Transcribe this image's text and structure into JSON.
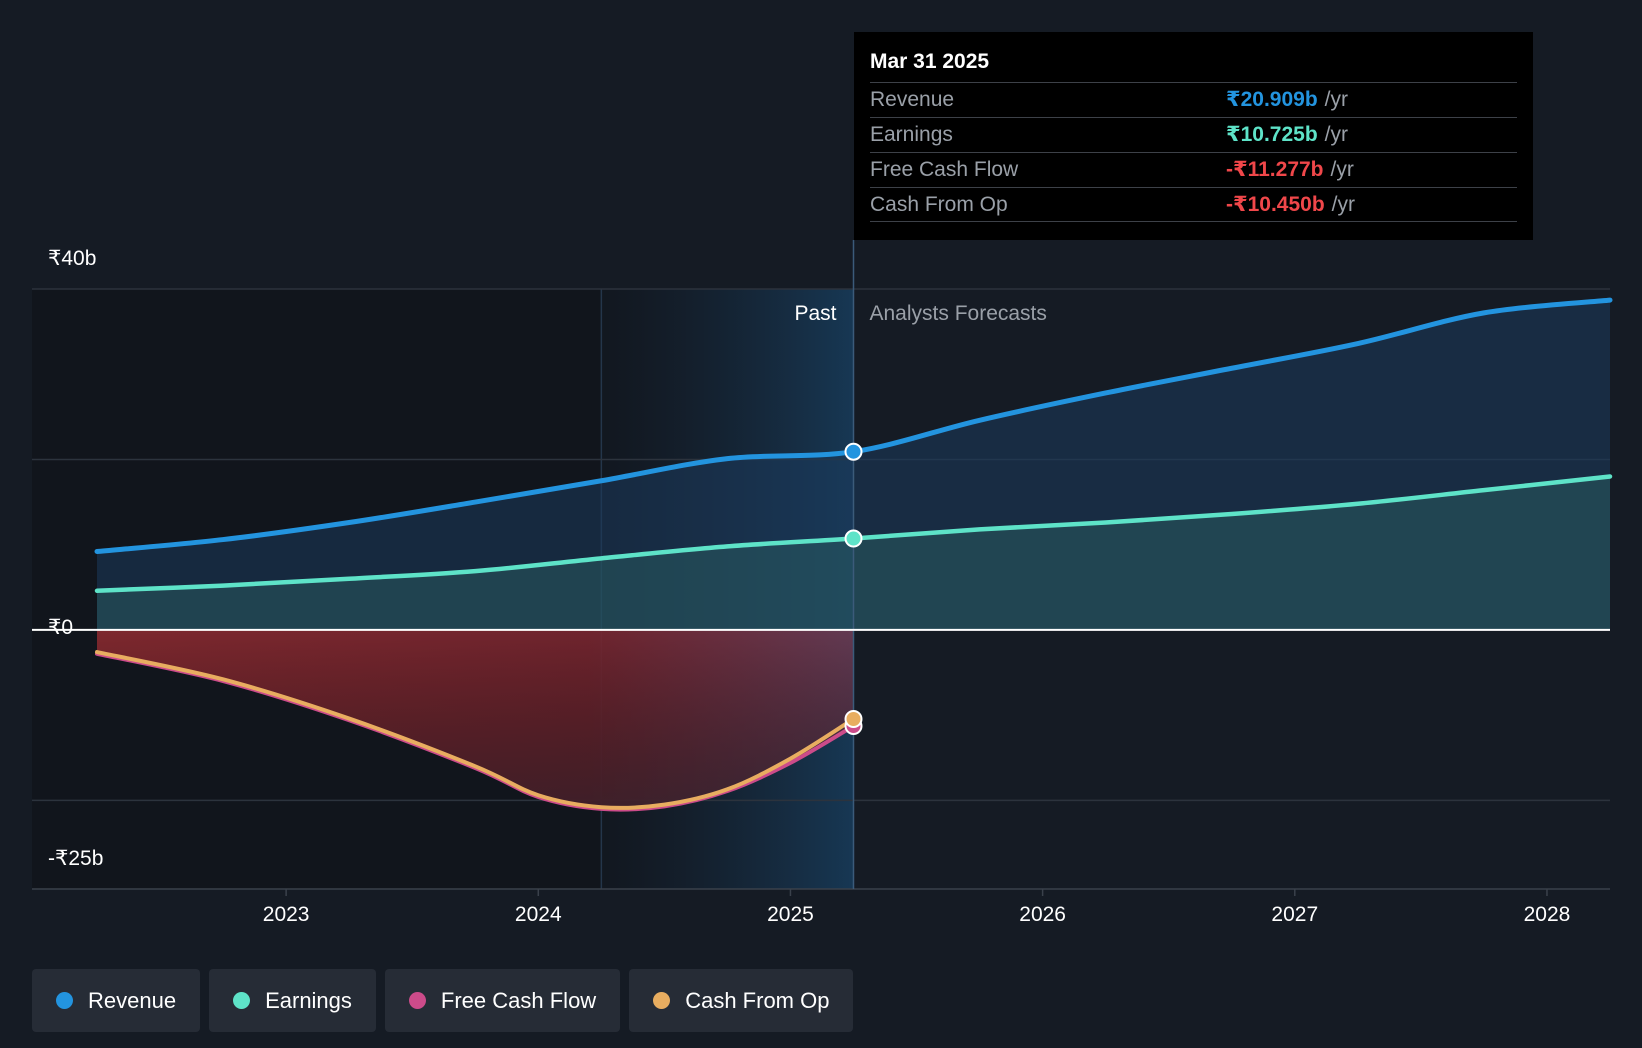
{
  "chart_data": {
    "type": "area",
    "x_unit": "year",
    "y_unit": "₹b",
    "ylim": [
      -25,
      40
    ],
    "xlim": [
      2022.25,
      2028.25
    ],
    "y_ticks": [
      {
        "value": 40,
        "label": "₹40b"
      },
      {
        "value": 0,
        "label": "₹0"
      },
      {
        "value": -25,
        "label": "-₹25b"
      }
    ],
    "x_ticks": [
      {
        "value": 2023,
        "label": "2023"
      },
      {
        "value": 2024,
        "label": "2024"
      },
      {
        "value": 2025,
        "label": "2025"
      },
      {
        "value": 2026,
        "label": "2026"
      },
      {
        "value": 2027,
        "label": "2027"
      },
      {
        "value": 2028,
        "label": "2028"
      }
    ],
    "past_label": "Past",
    "forecast_label": "Analysts Forecasts",
    "divider_x": 2025.25,
    "highlight_start_x": 2024.25,
    "series": [
      {
        "name": "Revenue",
        "color": "#2394df",
        "points": [
          [
            2022.25,
            9.2
          ],
          [
            2022.75,
            10.6
          ],
          [
            2023.25,
            12.6
          ],
          [
            2023.75,
            15.0
          ],
          [
            2024.25,
            17.5
          ],
          [
            2024.75,
            20.1
          ],
          [
            2025.25,
            20.909
          ],
          [
            2025.75,
            24.6
          ],
          [
            2026.25,
            27.8
          ],
          [
            2026.75,
            30.7
          ],
          [
            2027.25,
            33.6
          ],
          [
            2027.75,
            37.2
          ],
          [
            2028.25,
            38.7
          ]
        ]
      },
      {
        "name": "Earnings",
        "color": "#5ee3c8",
        "points": [
          [
            2022.25,
            4.6
          ],
          [
            2022.75,
            5.2
          ],
          [
            2023.25,
            6.0
          ],
          [
            2023.75,
            6.9
          ],
          [
            2024.25,
            8.4
          ],
          [
            2024.75,
            9.8
          ],
          [
            2025.25,
            10.725
          ],
          [
            2025.75,
            11.8
          ],
          [
            2026.25,
            12.6
          ],
          [
            2026.75,
            13.6
          ],
          [
            2027.25,
            14.8
          ],
          [
            2027.75,
            16.4
          ],
          [
            2028.25,
            18.0
          ]
        ]
      },
      {
        "name": "Free Cash Flow",
        "color": "#cc4b8a",
        "points": [
          [
            2022.25,
            -2.8
          ],
          [
            2022.75,
            -6.0
          ],
          [
            2023.25,
            -10.6
          ],
          [
            2023.75,
            -16.2
          ],
          [
            2024.0,
            -19.6
          ],
          [
            2024.25,
            -21.0
          ],
          [
            2024.5,
            -20.7
          ],
          [
            2024.75,
            -18.9
          ],
          [
            2025.0,
            -15.6
          ],
          [
            2025.25,
            -11.277
          ]
        ]
      },
      {
        "name": "Cash From Op",
        "color": "#e8ad60",
        "points": [
          [
            2022.25,
            -2.6
          ],
          [
            2022.75,
            -5.8
          ],
          [
            2023.25,
            -10.4
          ],
          [
            2023.75,
            -16.0
          ],
          [
            2024.0,
            -19.4
          ],
          [
            2024.25,
            -20.8
          ],
          [
            2024.5,
            -20.5
          ],
          [
            2024.75,
            -18.7
          ],
          [
            2025.0,
            -15.1
          ],
          [
            2025.25,
            -10.45
          ]
        ]
      }
    ]
  },
  "tooltip": {
    "date": "Mar 31 2025",
    "rows": [
      {
        "label": "Revenue",
        "value": "₹20.909b",
        "unit": "/yr",
        "color": "#2394df"
      },
      {
        "label": "Earnings",
        "value": "₹10.725b",
        "unit": "/yr",
        "color": "#5ee3c8"
      },
      {
        "label": "Free Cash Flow",
        "value": "-₹11.277b",
        "unit": "/yr",
        "color": "#f0474a"
      },
      {
        "label": "Cash From Op",
        "value": "-₹10.450b",
        "unit": "/yr",
        "color": "#f0474a"
      }
    ]
  },
  "legend": [
    {
      "label": "Revenue",
      "color": "#2394df"
    },
    {
      "label": "Earnings",
      "color": "#5ee3c8"
    },
    {
      "label": "Free Cash Flow",
      "color": "#cc4b8a"
    },
    {
      "label": "Cash From Op",
      "color": "#e8ad60"
    }
  ]
}
